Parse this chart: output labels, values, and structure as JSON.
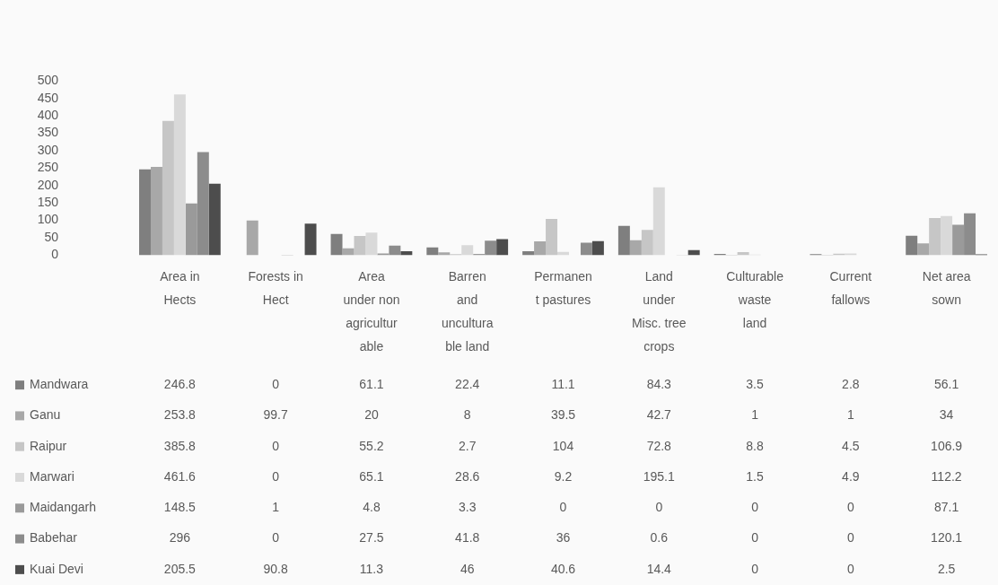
{
  "chart_data": {
    "type": "bar",
    "categories": [
      "Area in Hects",
      "Forests in Hect",
      "Area under non agriculturable",
      "Barren and unculturable land",
      "Permanent pastures",
      "Land under Misc. tree crops",
      "Culturable waste land",
      "Current fallows",
      "Net area sown"
    ],
    "series": [
      {
        "name": "Mandwara",
        "color": "#7f7f7f",
        "values": [
          246.8,
          0,
          61.1,
          22.4,
          11.1,
          84.3,
          3.5,
          2.8,
          56.1
        ]
      },
      {
        "name": "Ganu",
        "color": "#a8a8a8",
        "values": [
          253.8,
          99.7,
          20,
          8,
          39.5,
          42.7,
          1,
          1,
          34
        ]
      },
      {
        "name": "Raipur",
        "color": "#c6c6c6",
        "values": [
          385.8,
          0,
          55.2,
          2.7,
          104,
          72.8,
          8.8,
          4.5,
          106.9
        ]
      },
      {
        "name": "Marwari",
        "color": "#d9d9d9",
        "values": [
          461.6,
          0,
          65.1,
          28.6,
          9.2,
          195.1,
          1.5,
          4.9,
          112.2
        ]
      },
      {
        "name": "Maidangarh",
        "color": "#9a9a9a",
        "values": [
          148.5,
          1,
          4.8,
          3.3,
          0,
          0,
          0,
          0,
          87.1
        ]
      },
      {
        "name": "Babehar",
        "color": "#8c8c8c",
        "values": [
          296,
          0,
          27.5,
          41.8,
          36,
          0.6,
          0,
          0,
          120.1
        ]
      },
      {
        "name": "Kuai Devi",
        "color": "#4d4d4d",
        "values": [
          205.5,
          90.8,
          11.3,
          46,
          40.6,
          14.4,
          0,
          0,
          2.5
        ]
      }
    ],
    "ylim": [
      0,
      500
    ],
    "yticks": [
      0,
      50,
      100,
      150,
      200,
      250,
      300,
      350,
      400,
      450,
      500
    ],
    "grid": false,
    "legend": "bottom left",
    "data_labels": true
  }
}
